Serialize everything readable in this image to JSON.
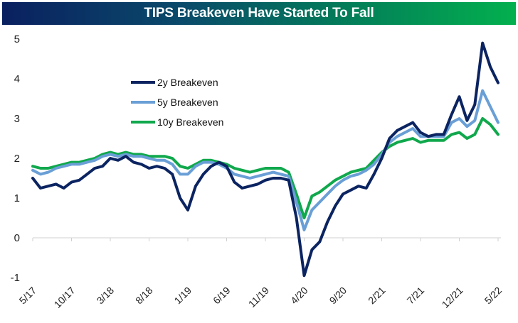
{
  "chart_data": {
    "type": "line",
    "title": "TIPS Breakeven Have Started To Fall",
    "xlabel": "",
    "ylabel": "",
    "ylim": [
      -1,
      5
    ],
    "yticks": [
      "5",
      "4",
      "3",
      "2",
      "1",
      "0",
      "-1"
    ],
    "ytick_values": [
      5,
      4,
      3,
      2,
      1,
      0,
      -1
    ],
    "xtick_labels": [
      "5/17",
      "10/17",
      "3/18",
      "8/18",
      "1/19",
      "6/19",
      "11/19",
      "4/20",
      "9/20",
      "2/21",
      "7/21",
      "12/21",
      "5/22"
    ],
    "xtick_month_index": [
      0,
      5,
      10,
      15,
      20,
      25,
      30,
      35,
      40,
      45,
      50,
      55,
      60
    ],
    "x_months": 61,
    "legend_position": "top-left",
    "grid": false,
    "series": [
      {
        "name": "2y Breakeven",
        "color": "#0b2461",
        "values": [
          1.5,
          1.25,
          1.3,
          1.35,
          1.25,
          1.4,
          1.45,
          1.6,
          1.75,
          1.8,
          2.0,
          1.95,
          2.05,
          1.9,
          1.85,
          1.75,
          1.8,
          1.75,
          1.6,
          1.0,
          0.7,
          1.3,
          1.6,
          1.8,
          1.9,
          1.8,
          1.4,
          1.25,
          1.3,
          1.35,
          1.45,
          1.5,
          1.5,
          1.45,
          0.5,
          -0.95,
          -0.3,
          -0.1,
          0.4,
          0.8,
          1.1,
          1.2,
          1.3,
          1.25,
          1.6,
          2.0,
          2.5,
          2.7,
          2.8,
          2.9,
          2.65,
          2.55,
          2.6,
          2.6,
          3.1,
          3.55,
          2.95,
          3.35,
          4.9,
          4.3,
          3.9
        ]
      },
      {
        "name": "5y Breakeven",
        "color": "#6a9fd6",
        "values": [
          1.7,
          1.6,
          1.65,
          1.75,
          1.8,
          1.85,
          1.85,
          1.9,
          1.95,
          2.05,
          2.1,
          2.05,
          2.1,
          2.05,
          2.05,
          2.0,
          1.95,
          1.95,
          1.85,
          1.6,
          1.6,
          1.8,
          1.9,
          1.9,
          1.85,
          1.75,
          1.6,
          1.55,
          1.5,
          1.55,
          1.6,
          1.65,
          1.6,
          1.55,
          0.9,
          0.2,
          0.7,
          0.9,
          1.1,
          1.3,
          1.45,
          1.55,
          1.6,
          1.7,
          1.85,
          2.1,
          2.4,
          2.55,
          2.65,
          2.75,
          2.55,
          2.55,
          2.55,
          2.55,
          2.9,
          3.0,
          2.8,
          2.95,
          3.7,
          3.3,
          2.9
        ]
      },
      {
        "name": "10y Breakeven",
        "color": "#10a84c",
        "values": [
          1.8,
          1.75,
          1.75,
          1.8,
          1.85,
          1.9,
          1.9,
          1.95,
          2.0,
          2.1,
          2.15,
          2.1,
          2.15,
          2.1,
          2.1,
          2.05,
          2.05,
          2.05,
          2.0,
          1.8,
          1.75,
          1.85,
          1.95,
          1.95,
          1.9,
          1.85,
          1.75,
          1.7,
          1.65,
          1.7,
          1.75,
          1.75,
          1.75,
          1.65,
          1.1,
          0.5,
          1.05,
          1.15,
          1.3,
          1.45,
          1.55,
          1.65,
          1.7,
          1.75,
          1.95,
          2.15,
          2.3,
          2.4,
          2.45,
          2.5,
          2.4,
          2.45,
          2.45,
          2.45,
          2.6,
          2.65,
          2.5,
          2.6,
          3.0,
          2.85,
          2.6
        ]
      }
    ]
  }
}
